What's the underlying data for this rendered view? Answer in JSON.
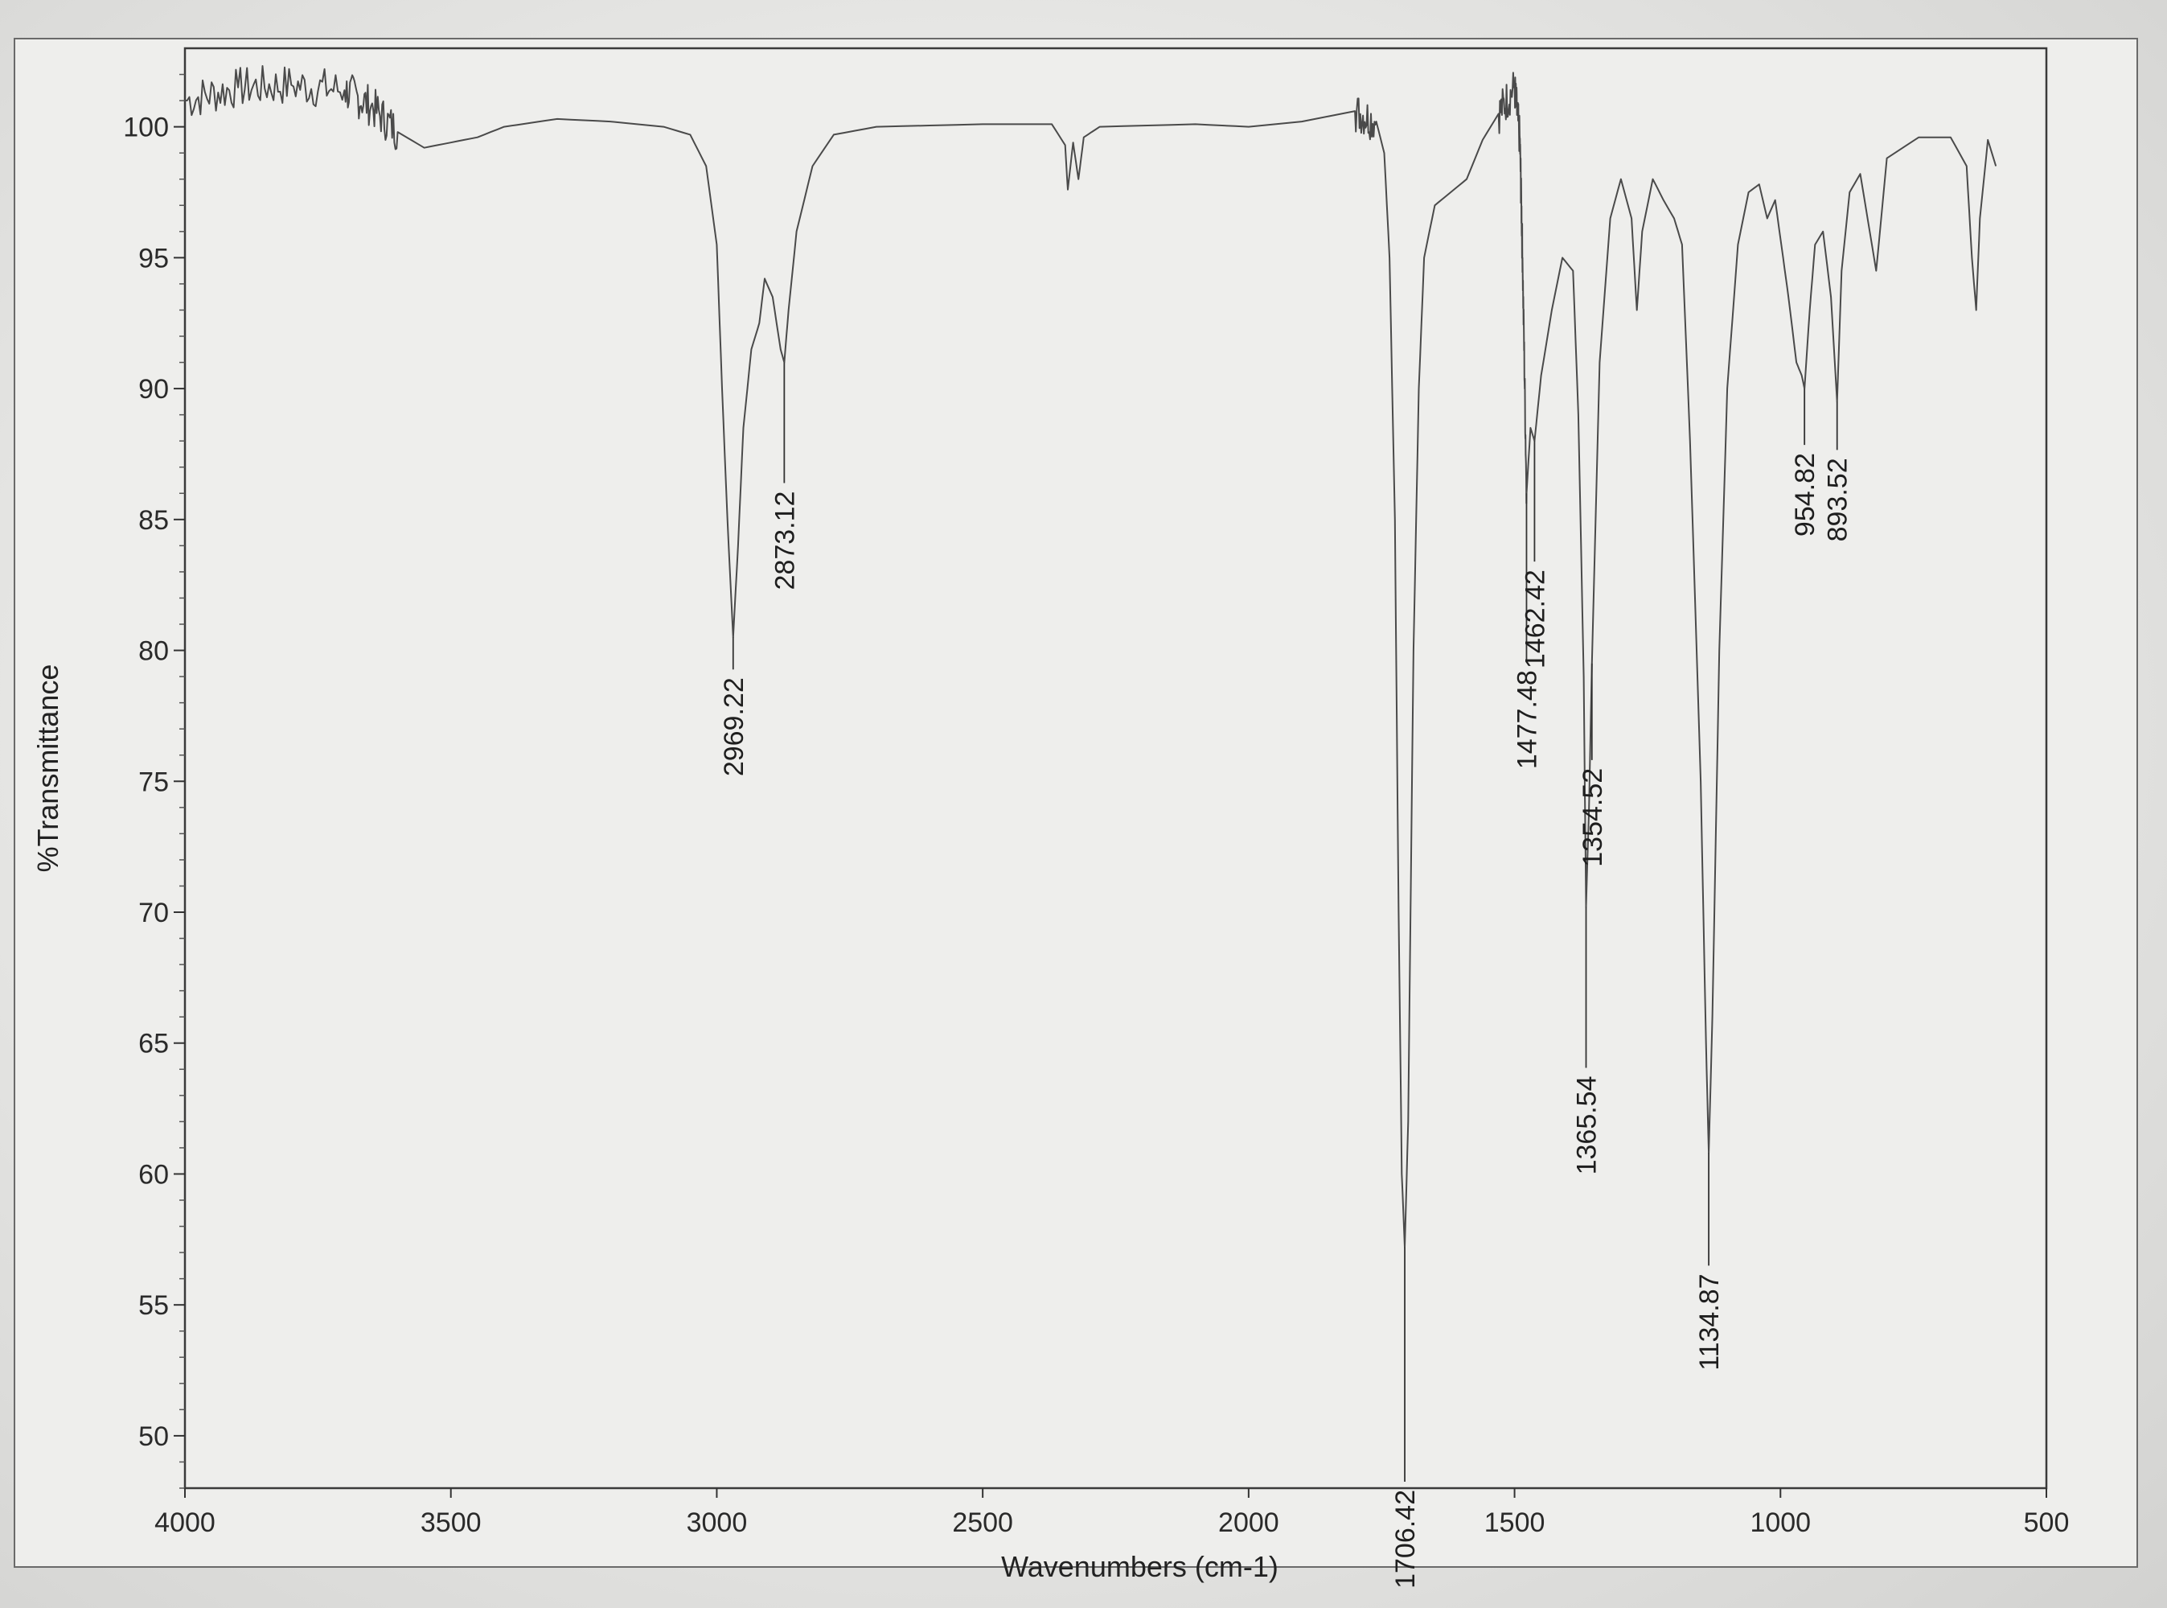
{
  "chart_data": {
    "type": "line",
    "title": "",
    "xlabel": "Wavenumbers (cm-1)",
    "ylabel": "%Transmittance",
    "xlim": [
      4000,
      500
    ],
    "ylim": [
      48,
      103
    ],
    "x_ticks": [
      4000,
      3500,
      3000,
      2500,
      2000,
      1500,
      1000,
      500
    ],
    "y_ticks": [
      50,
      55,
      60,
      65,
      70,
      75,
      80,
      85,
      90,
      95,
      100
    ],
    "grid": false,
    "series": [
      {
        "values": [
          [
            4000,
            101.0
          ],
          [
            3900,
            101.5
          ],
          [
            3800,
            101.6
          ],
          [
            3700,
            101.4
          ],
          [
            3650,
            100.8
          ],
          [
            3600,
            99.8
          ],
          [
            3550,
            99.2
          ],
          [
            3500,
            99.4
          ],
          [
            3450,
            99.6
          ],
          [
            3400,
            100.0
          ],
          [
            3300,
            100.3
          ],
          [
            3200,
            100.2
          ],
          [
            3100,
            100.0
          ],
          [
            3050,
            99.7
          ],
          [
            3020,
            98.5
          ],
          [
            3000,
            95.5
          ],
          [
            2990,
            90.0
          ],
          [
            2980,
            85.0
          ],
          [
            2969.22,
            80.5
          ],
          [
            2960,
            84.0
          ],
          [
            2950,
            88.5
          ],
          [
            2935,
            91.5
          ],
          [
            2920,
            92.5
          ],
          [
            2910,
            94.2
          ],
          [
            2895,
            93.5
          ],
          [
            2880,
            91.5
          ],
          [
            2873.12,
            91.0
          ],
          [
            2865,
            93.0
          ],
          [
            2850,
            96.0
          ],
          [
            2820,
            98.5
          ],
          [
            2780,
            99.7
          ],
          [
            2700,
            100.0
          ],
          [
            2500,
            100.1
          ],
          [
            2370,
            100.1
          ],
          [
            2345,
            99.3
          ],
          [
            2340,
            97.6
          ],
          [
            2330,
            99.4
          ],
          [
            2320,
            98.0
          ],
          [
            2310,
            99.6
          ],
          [
            2280,
            100.0
          ],
          [
            2100,
            100.1
          ],
          [
            2000,
            100.0
          ],
          [
            1900,
            100.2
          ],
          [
            1800,
            100.6
          ],
          [
            1760,
            100.2
          ],
          [
            1745,
            99.0
          ],
          [
            1735,
            95.0
          ],
          [
            1725,
            85.0
          ],
          [
            1718,
            70.0
          ],
          [
            1712,
            60.0
          ],
          [
            1706.42,
            57.2
          ],
          [
            1700,
            62.0
          ],
          [
            1690,
            80.0
          ],
          [
            1680,
            90.0
          ],
          [
            1670,
            95.0
          ],
          [
            1650,
            97.0
          ],
          [
            1620,
            97.5
          ],
          [
            1590,
            98.0
          ],
          [
            1560,
            99.5
          ],
          [
            1530,
            100.5
          ],
          [
            1500,
            101.5
          ],
          [
            1490,
            99.5
          ],
          [
            1485,
            95.0
          ],
          [
            1477.48,
            86.0
          ],
          [
            1470,
            88.5
          ],
          [
            1462.42,
            88.0
          ],
          [
            1450,
            90.5
          ],
          [
            1430,
            93.0
          ],
          [
            1410,
            95.0
          ],
          [
            1390,
            94.5
          ],
          [
            1380,
            89.0
          ],
          [
            1370,
            79.0
          ],
          [
            1365.54,
            70.2
          ],
          [
            1360,
            74.0
          ],
          [
            1354.52,
            79.5
          ],
          [
            1340,
            91.0
          ],
          [
            1320,
            96.5
          ],
          [
            1300,
            98.0
          ],
          [
            1280,
            96.5
          ],
          [
            1270,
            93.0
          ],
          [
            1260,
            96.0
          ],
          [
            1240,
            98.0
          ],
          [
            1220,
            97.2
          ],
          [
            1200,
            96.5
          ],
          [
            1185,
            95.5
          ],
          [
            1170,
            88.0
          ],
          [
            1150,
            75.0
          ],
          [
            1140,
            65.0
          ],
          [
            1134.87,
            60.8
          ],
          [
            1128,
            66.0
          ],
          [
            1115,
            80.0
          ],
          [
            1100,
            90.0
          ],
          [
            1080,
            95.5
          ],
          [
            1060,
            97.5
          ],
          [
            1040,
            97.8
          ],
          [
            1025,
            96.5
          ],
          [
            1010,
            97.2
          ],
          [
            995,
            95.0
          ],
          [
            985,
            93.5
          ],
          [
            970,
            91.0
          ],
          [
            960,
            90.5
          ],
          [
            954.82,
            90.0
          ],
          [
            945,
            93.0
          ],
          [
            935,
            95.5
          ],
          [
            920,
            96.0
          ],
          [
            905,
            93.5
          ],
          [
            893.52,
            89.5
          ],
          [
            885,
            94.5
          ],
          [
            870,
            97.5
          ],
          [
            850,
            98.2
          ],
          [
            820,
            94.5
          ],
          [
            800,
            98.8
          ],
          [
            740,
            99.6
          ],
          [
            680,
            99.6
          ],
          [
            650,
            98.5
          ],
          [
            640,
            95.0
          ],
          [
            632,
            93.0
          ],
          [
            625,
            96.5
          ],
          [
            610,
            99.5
          ],
          [
            595,
            98.5
          ]
        ]
      }
    ],
    "annotations": [
      {
        "x": 2969.22,
        "y": 80.5,
        "label": "2969.22"
      },
      {
        "x": 2873.12,
        "y": 91.0,
        "label": "2873.12"
      },
      {
        "x": 1706.42,
        "y": 57.2,
        "label": "1706.42"
      },
      {
        "x": 1477.48,
        "y": 86.0,
        "label": "1477.48"
      },
      {
        "x": 1462.42,
        "y": 88.0,
        "label": "1462.42"
      },
      {
        "x": 1365.54,
        "y": 70.2,
        "label": "1365.54"
      },
      {
        "x": 1354.52,
        "y": 79.5,
        "label": "1354.52"
      },
      {
        "x": 1134.87,
        "y": 60.8,
        "label": "1134.87"
      },
      {
        "x": 954.82,
        "y": 90.0,
        "label": "954.82"
      },
      {
        "x": 893.52,
        "y": 89.5,
        "label": "893.52"
      }
    ]
  }
}
